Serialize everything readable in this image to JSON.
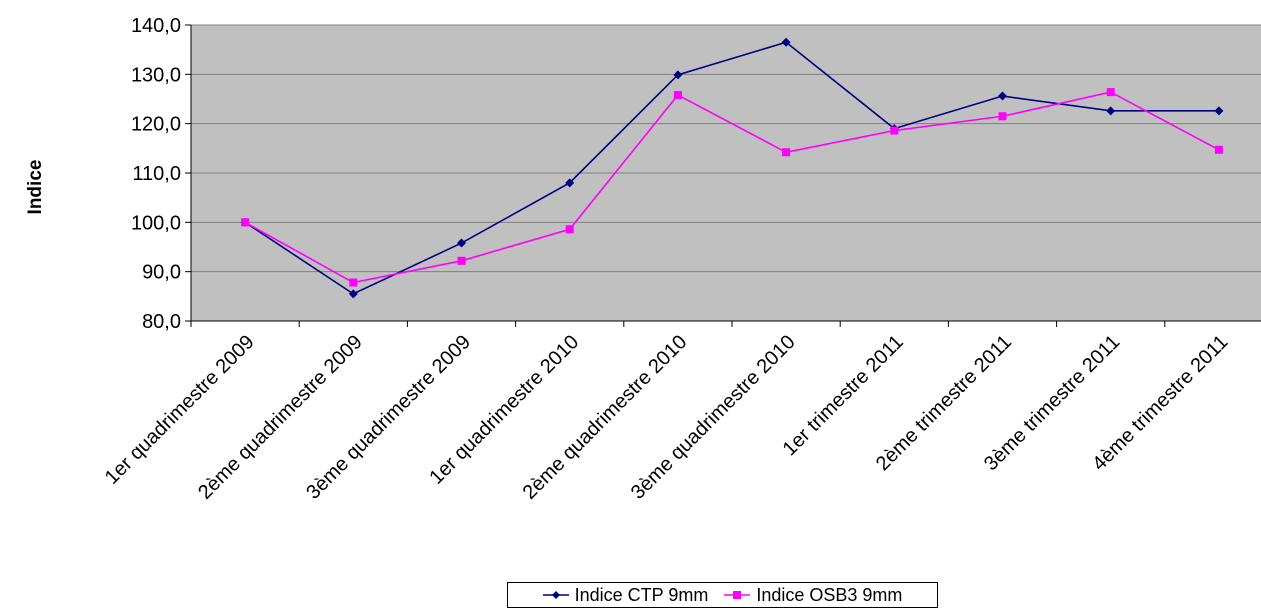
{
  "chart_data": {
    "type": "line",
    "title": "",
    "xlabel": "",
    "ylabel": "Indice",
    "categories": [
      "1er quadrimestre 2009",
      "2ème quadrimestre 2009",
      "3ème quadrimestre 2009",
      "1er quadrimestre 2010",
      "2ème quadrimestre 2010",
      "3ème quadrimestre 2010",
      "1er trimestre 2011",
      "2ème trimestre 2011",
      "3ème trimestre 2011",
      "4ème trimestre 2011"
    ],
    "series": [
      {
        "name": "Indice CTP 9mm",
        "color": "#000080",
        "marker": "diamond",
        "values": [
          100.0,
          85.5,
          95.8,
          108.0,
          129.9,
          136.5,
          119.0,
          125.6,
          122.6,
          122.6
        ]
      },
      {
        "name": "Indice OSB3 9mm",
        "color": "#ff00ff",
        "marker": "square",
        "values": [
          100.0,
          87.8,
          92.2,
          98.6,
          125.8,
          114.2,
          118.6,
          121.5,
          126.4,
          114.7
        ]
      }
    ],
    "ylim": [
      80,
      140
    ],
    "yticks": [
      80,
      90,
      100,
      110,
      120,
      130,
      140
    ],
    "ytick_labels": [
      "80,0",
      "90,0",
      "100,0",
      "110,0",
      "120,0",
      "130,0",
      "140,0"
    ],
    "grid": true,
    "plot_background": "#c0c0c0",
    "legend": "bottom"
  }
}
